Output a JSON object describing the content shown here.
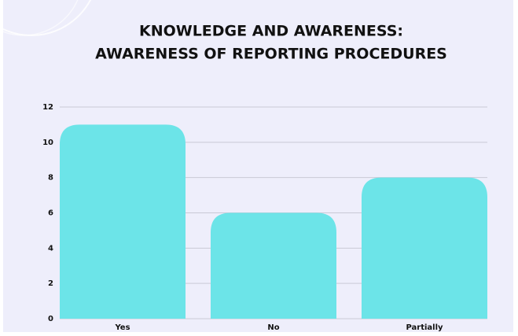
{
  "chart_data": {
    "type": "bar",
    "title": [
      "KNOWLEDGE AND AWARENESS:",
      "AWARENESS OF REPORTING PROCEDURES"
    ],
    "categories": [
      "Yes",
      "No",
      "Partially"
    ],
    "values": [
      11,
      6,
      8
    ],
    "color": "#6ce4e8",
    "ylim": [
      0,
      12
    ],
    "yticks": [
      0,
      2,
      4,
      6,
      8,
      10,
      12
    ],
    "grid": true
  }
}
